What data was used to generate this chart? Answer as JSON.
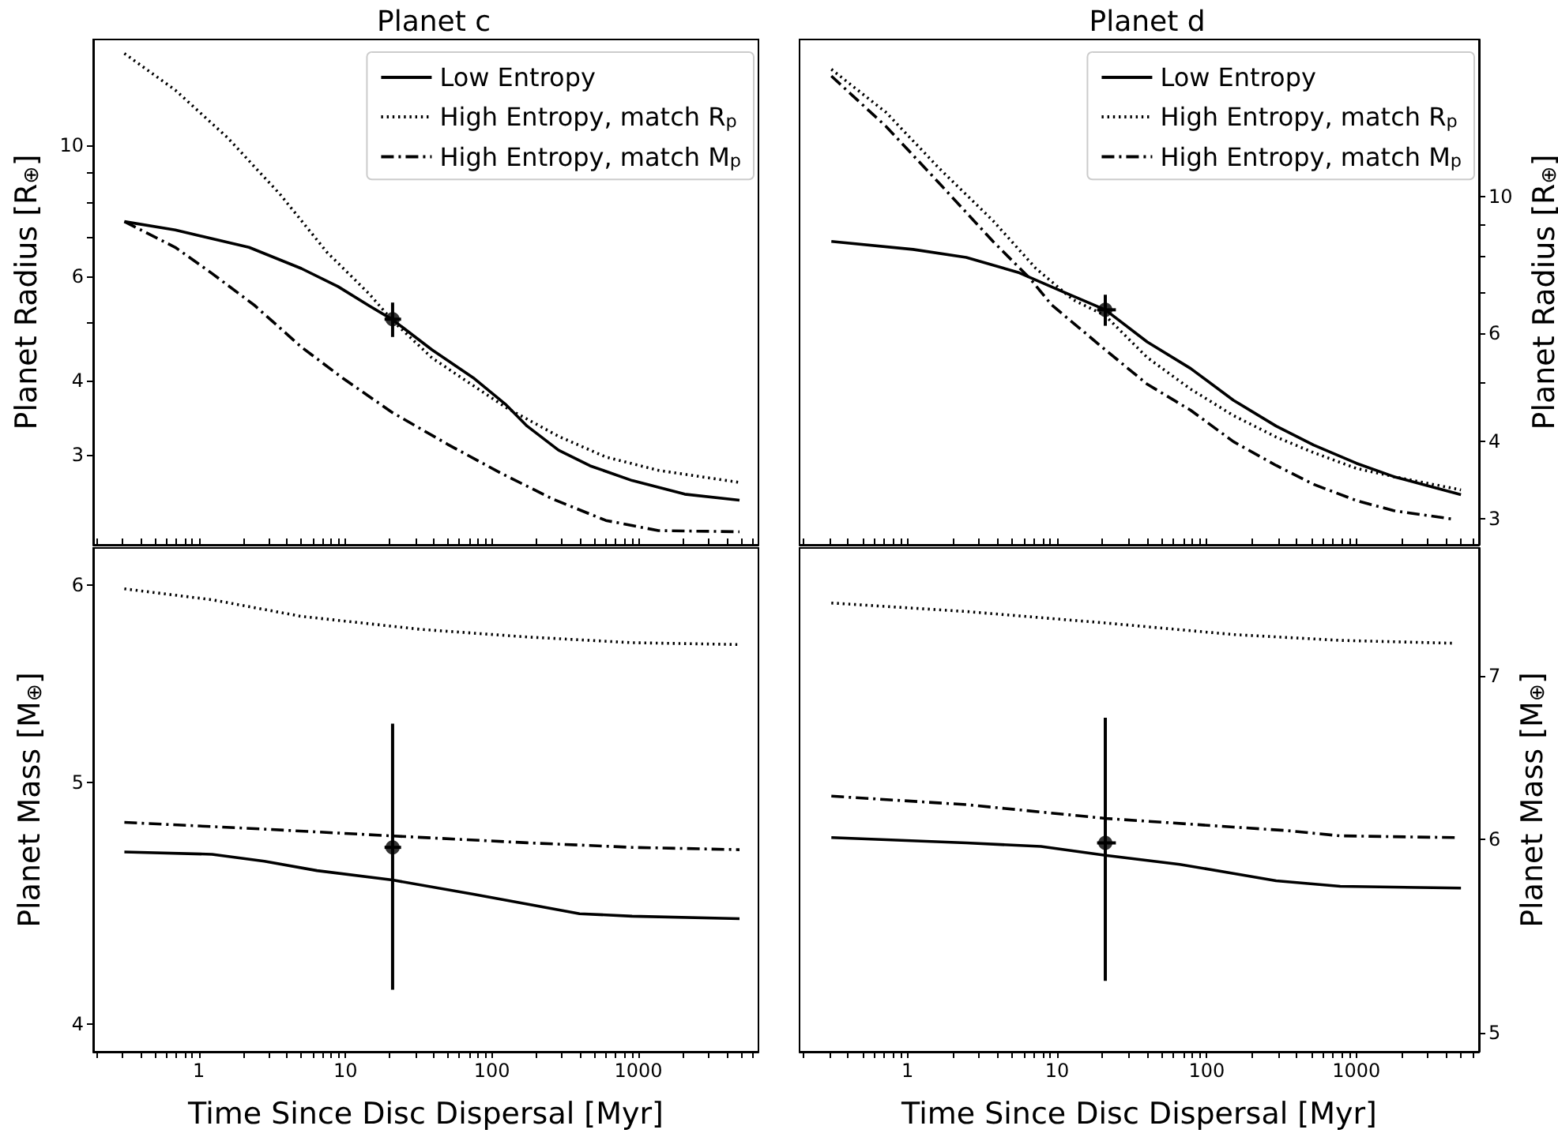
{
  "chart_data": [
    {
      "type": "line",
      "title": "Planet c",
      "ylabel": "Planet Radius [R$_{⊕}$]",
      "log": "xy",
      "grid": false,
      "legend": "top right",
      "tick_labels": "y",
      "xlim": [
        0.19,
        6600
      ],
      "xticks": [
        {
          "value": 0.2,
          "label": null
        },
        {
          "value": 0.3,
          "label": null
        },
        {
          "value": 0.4,
          "label": null
        },
        {
          "value": 0.5,
          "label": null
        },
        {
          "value": 0.6,
          "label": null
        },
        {
          "value": 0.7,
          "label": null
        },
        {
          "value": 0.8,
          "label": null
        },
        {
          "value": 0.9,
          "label": null
        },
        1,
        {
          "value": 2,
          "label": null
        },
        {
          "value": 3,
          "label": null
        },
        {
          "value": 4,
          "label": null
        },
        {
          "value": 5,
          "label": null
        },
        {
          "value": 6,
          "label": null
        },
        {
          "value": 7,
          "label": null
        },
        {
          "value": 8,
          "label": null
        },
        {
          "value": 9,
          "label": null
        },
        10,
        {
          "value": 20,
          "label": null
        },
        {
          "value": 30,
          "label": null
        },
        {
          "value": 40,
          "label": null
        },
        {
          "value": 50,
          "label": null
        },
        {
          "value": 60,
          "label": null
        },
        {
          "value": 70,
          "label": null
        },
        {
          "value": 80,
          "label": null
        },
        {
          "value": 90,
          "label": null
        },
        100,
        {
          "value": 200,
          "label": null
        },
        {
          "value": 300,
          "label": null
        },
        {
          "value": 400,
          "label": null
        },
        {
          "value": 500,
          "label": null
        },
        {
          "value": 600,
          "label": null
        },
        {
          "value": 700,
          "label": null
        },
        {
          "value": 800,
          "label": null
        },
        {
          "value": 900,
          "label": null
        },
        1000,
        {
          "value": 2000,
          "label": null
        },
        {
          "value": 3000,
          "label": null
        },
        {
          "value": 4000,
          "label": null
        },
        {
          "value": 5000,
          "label": null
        },
        {
          "value": 6000,
          "label": null
        }
      ],
      "ylim": [
        2.11,
        15.1
      ],
      "yticks": [
        3,
        4,
        {
          "value": 5,
          "label": null
        },
        6,
        {
          "value": 7,
          "label": null
        },
        {
          "value": 8,
          "label": null
        },
        {
          "value": 9,
          "label": null
        },
        10
      ],
      "series": [
        {
          "name": "Low Entropy",
          "line_style": "solid",
          "color": "#000000",
          "x": [
            0.31,
            0.69,
            2.2,
            5,
            8.9,
            14.6,
            21,
            39,
            76,
            125,
            174,
            285,
            468,
            906,
            2070,
            4900
          ],
          "values": [
            7.43,
            7.19,
            6.72,
            6.19,
            5.77,
            5.35,
            5.07,
            4.51,
            4.03,
            3.64,
            3.35,
            3.05,
            2.87,
            2.71,
            2.57,
            2.51
          ]
        },
        {
          "name": "High Entropy, match R$_{p}$",
          "line_style": "dotted",
          "color": "#000000",
          "x": [
            0.31,
            0.69,
            1.57,
            3.6,
            7.5,
            14.6,
            21,
            39,
            76,
            125,
            285,
            600,
            1370,
            4900
          ],
          "values": [
            14.3,
            12.4,
            10.3,
            8.25,
            6.59,
            5.6,
            5.05,
            4.37,
            3.91,
            3.6,
            3.22,
            2.97,
            2.82,
            2.69
          ]
        },
        {
          "name": "High Entropy, match M$_{p}$",
          "line_style": "dashdot",
          "color": "#000000",
          "x": [
            0.31,
            0.69,
            1.23,
            2.38,
            5,
            9.7,
            21,
            50,
            115,
            262,
            600,
            1370,
            4900
          ],
          "values": [
            7.43,
            6.72,
            6.07,
            5.37,
            4.56,
            4.03,
            3.53,
            3.12,
            2.79,
            2.52,
            2.32,
            2.23,
            2.22
          ]
        },
        {
          "type": "scatter",
          "marker": "circle",
          "color": "#000000",
          "x": [
            21
          ],
          "values": [
            5.08
          ],
          "errors": [
            [
              4.74,
              5.42
            ]
          ],
          "xerrors": [
            [
              18.5,
              24
            ]
          ]
        }
      ]
    },
    {
      "type": "line",
      "title": "Planet d",
      "ylabel": "Planet Radius [R$_{⊕}$]",
      "log": "xy",
      "grid": false,
      "legend": "top right",
      "tick_labels": "y",
      "xlim": [
        0.19,
        6600
      ],
      "xticks": [
        {
          "value": 0.2,
          "label": null
        },
        {
          "value": 0.3,
          "label": null
        },
        {
          "value": 0.4,
          "label": null
        },
        {
          "value": 0.5,
          "label": null
        },
        {
          "value": 0.6,
          "label": null
        },
        {
          "value": 0.7,
          "label": null
        },
        {
          "value": 0.8,
          "label": null
        },
        {
          "value": 0.9,
          "label": null
        },
        1,
        {
          "value": 2,
          "label": null
        },
        {
          "value": 3,
          "label": null
        },
        {
          "value": 4,
          "label": null
        },
        {
          "value": 5,
          "label": null
        },
        {
          "value": 6,
          "label": null
        },
        {
          "value": 7,
          "label": null
        },
        {
          "value": 8,
          "label": null
        },
        {
          "value": 9,
          "label": null
        },
        10,
        {
          "value": 20,
          "label": null
        },
        {
          "value": 30,
          "label": null
        },
        {
          "value": 40,
          "label": null
        },
        {
          "value": 50,
          "label": null
        },
        {
          "value": 60,
          "label": null
        },
        {
          "value": 70,
          "label": null
        },
        {
          "value": 80,
          "label": null
        },
        {
          "value": 90,
          "label": null
        },
        100,
        {
          "value": 200,
          "label": null
        },
        {
          "value": 300,
          "label": null
        },
        {
          "value": 400,
          "label": null
        },
        {
          "value": 500,
          "label": null
        },
        {
          "value": 600,
          "label": null
        },
        {
          "value": 700,
          "label": null
        },
        {
          "value": 800,
          "label": null
        },
        {
          "value": 900,
          "label": null
        },
        1000,
        {
          "value": 2000,
          "label": null
        },
        {
          "value": 3000,
          "label": null
        },
        {
          "value": 4000,
          "label": null
        },
        {
          "value": 5000,
          "label": null
        },
        {
          "value": 6000,
          "label": null
        }
      ],
      "ylim": [
        2.72,
        18
      ],
      "yticks": [
        3,
        4,
        {
          "value": 5,
          "label": null
        },
        6,
        {
          "value": 7,
          "label": null
        },
        {
          "value": 8,
          "label": null
        },
        {
          "value": 9,
          "label": null
        },
        10
      ],
      "series": [
        {
          "name": "Low Entropy",
          "line_style": "solid",
          "color": "#000000",
          "x": [
            0.31,
            1.09,
            2.47,
            5.6,
            10.9,
            21,
            40,
            78,
            151,
            291,
            518,
            1000,
            1780,
            5000
          ],
          "values": [
            8.46,
            8.21,
            7.97,
            7.52,
            7.01,
            6.55,
            5.81,
            5.26,
            4.67,
            4.24,
            3.95,
            3.69,
            3.51,
            3.28
          ]
        },
        {
          "name": "High Entropy, match R$_{p}$",
          "line_style": "dotted",
          "color": "#000000",
          "x": [
            0.31,
            0.72,
            1.64,
            3.73,
            7.2,
            12.8,
            21,
            40,
            78,
            151,
            291,
            518,
            1000,
            1780,
            5000
          ],
          "values": [
            16.1,
            13.7,
            11.1,
            9.14,
            7.65,
            6.8,
            6.41,
            5.48,
            4.87,
            4.41,
            4.07,
            3.84,
            3.62,
            3.51,
            3.34
          ]
        },
        {
          "name": "High Entropy, match M$_{p}$",
          "line_style": "dashdot",
          "color": "#000000",
          "x": [
            0.31,
            0.72,
            1.64,
            3.73,
            6.6,
            9.2,
            21,
            40,
            78,
            151,
            291,
            518,
            1000,
            1780,
            4600
          ],
          "values": [
            15.7,
            13.0,
            10.5,
            8.46,
            7.36,
            6.67,
            5.64,
            4.96,
            4.5,
            4.0,
            3.66,
            3.41,
            3.21,
            3.09,
            2.99
          ]
        },
        {
          "type": "scatter",
          "marker": "circle",
          "color": "#000000",
          "x": [
            21
          ],
          "values": [
            6.55
          ],
          "errors": [
            [
              6.17,
              6.93
            ]
          ],
          "xerrors": [
            [
              18.5,
              24.7
            ]
          ]
        }
      ]
    },
    {
      "type": "line",
      "xlabel": "Time Since Disc Dispersal [Myr]",
      "ylabel": "Planet Mass [M$_{⊕}$]",
      "log": "xy",
      "grid": false,
      "xlim": [
        0.19,
        6600
      ],
      "xticks": [
        {
          "value": 0.2,
          "label": null
        },
        {
          "value": 0.3,
          "label": null
        },
        {
          "value": 0.4,
          "label": null
        },
        {
          "value": 0.5,
          "label": null
        },
        {
          "value": 0.6,
          "label": null
        },
        {
          "value": 0.7,
          "label": null
        },
        {
          "value": 0.8,
          "label": null
        },
        {
          "value": 0.9,
          "label": null
        },
        1,
        {
          "value": 2,
          "label": null
        },
        {
          "value": 3,
          "label": null
        },
        {
          "value": 4,
          "label": null
        },
        {
          "value": 5,
          "label": null
        },
        {
          "value": 6,
          "label": null
        },
        {
          "value": 7,
          "label": null
        },
        {
          "value": 8,
          "label": null
        },
        {
          "value": 9,
          "label": null
        },
        10,
        {
          "value": 20,
          "label": null
        },
        {
          "value": 30,
          "label": null
        },
        {
          "value": 40,
          "label": null
        },
        {
          "value": 50,
          "label": null
        },
        {
          "value": 60,
          "label": null
        },
        {
          "value": 70,
          "label": null
        },
        {
          "value": 80,
          "label": null
        },
        {
          "value": 90,
          "label": null
        },
        100,
        {
          "value": 200,
          "label": null
        },
        {
          "value": 300,
          "label": null
        },
        {
          "value": 400,
          "label": null
        },
        {
          "value": 500,
          "label": null
        },
        {
          "value": 600,
          "label": null
        },
        {
          "value": 700,
          "label": null
        },
        {
          "value": 800,
          "label": null
        },
        {
          "value": 900,
          "label": null
        },
        1000,
        {
          "value": 2000,
          "label": null
        },
        {
          "value": 3000,
          "label": null
        },
        {
          "value": 4000,
          "label": null
        },
        {
          "value": 5000,
          "label": null
        },
        {
          "value": 6000,
          "label": null
        }
      ],
      "ylim": [
        3.9,
        6.21
      ],
      "yticks": [
        4,
        5,
        6
      ],
      "series": [
        {
          "line_style": "solid",
          "color": "#000000",
          "x": [
            0.31,
            1.23,
            2.8,
            6.4,
            21,
            76,
            174,
            397,
            906,
            4900
          ],
          "values": [
            4.69,
            4.68,
            4.65,
            4.61,
            4.57,
            4.51,
            4.47,
            4.43,
            4.42,
            4.41
          ]
        },
        {
          "line_style": "dotted",
          "color": "#000000",
          "x": [
            0.31,
            1.23,
            5,
            33,
            174,
            906,
            4900
          ],
          "values": [
            5.98,
            5.92,
            5.83,
            5.76,
            5.72,
            5.69,
            5.68
          ]
        },
        {
          "line_style": "dashdot",
          "color": "#000000",
          "x": [
            0.31,
            2.8,
            21,
            174,
            906,
            4900
          ],
          "values": [
            4.82,
            4.79,
            4.76,
            4.73,
            4.71,
            4.7
          ]
        },
        {
          "type": "scatter",
          "marker": "circle",
          "color": "#000000",
          "x": [
            21
          ],
          "values": [
            4.71
          ],
          "errors": [
            [
              4.13,
              5.28
            ]
          ],
          "xerrors": [
            [
              18.5,
              24
            ]
          ]
        }
      ]
    },
    {
      "type": "line",
      "xlabel": "Time Since Disc Dispersal [Myr]",
      "ylabel": "Planet Mass [M$_{⊕}$]",
      "log": "xy",
      "grid": false,
      "xlim": [
        0.19,
        6600
      ],
      "xticks": [
        {
          "value": 0.2,
          "label": null
        },
        {
          "value": 0.3,
          "label": null
        },
        {
          "value": 0.4,
          "label": null
        },
        {
          "value": 0.5,
          "label": null
        },
        {
          "value": 0.6,
          "label": null
        },
        {
          "value": 0.7,
          "label": null
        },
        {
          "value": 0.8,
          "label": null
        },
        {
          "value": 0.9,
          "label": null
        },
        1,
        {
          "value": 2,
          "label": null
        },
        {
          "value": 3,
          "label": null
        },
        {
          "value": 4,
          "label": null
        },
        {
          "value": 5,
          "label": null
        },
        {
          "value": 6,
          "label": null
        },
        {
          "value": 7,
          "label": null
        },
        {
          "value": 8,
          "label": null
        },
        {
          "value": 9,
          "label": null
        },
        10,
        {
          "value": 20,
          "label": null
        },
        {
          "value": 30,
          "label": null
        },
        {
          "value": 40,
          "label": null
        },
        {
          "value": 50,
          "label": null
        },
        {
          "value": 60,
          "label": null
        },
        {
          "value": 70,
          "label": null
        },
        {
          "value": 80,
          "label": null
        },
        {
          "value": 90,
          "label": null
        },
        100,
        {
          "value": 200,
          "label": null
        },
        {
          "value": 300,
          "label": null
        },
        {
          "value": 400,
          "label": null
        },
        {
          "value": 500,
          "label": null
        },
        {
          "value": 600,
          "label": null
        },
        {
          "value": 700,
          "label": null
        },
        {
          "value": 800,
          "label": null
        },
        {
          "value": 900,
          "label": null
        },
        1000,
        {
          "value": 2000,
          "label": null
        },
        {
          "value": 3000,
          "label": null
        },
        {
          "value": 4000,
          "label": null
        },
        {
          "value": 5000,
          "label": null
        },
        {
          "value": 6000,
          "label": null
        }
      ],
      "ylim": [
        4.91,
        7.9
      ],
      "yticks": [
        5,
        6,
        7
      ],
      "series": [
        {
          "line_style": "solid",
          "color": "#000000",
          "x": [
            0.31,
            2.47,
            7.8,
            21,
            66,
            151,
            291,
            780,
            5000
          ],
          "values": [
            6.01,
            5.98,
            5.96,
            5.91,
            5.86,
            5.81,
            5.77,
            5.74,
            5.73
          ]
        },
        {
          "line_style": "dotted",
          "color": "#000000",
          "x": [
            0.31,
            2.47,
            21,
            151,
            780,
            4600
          ],
          "values": [
            7.5,
            7.44,
            7.36,
            7.28,
            7.24,
            7.22
          ]
        },
        {
          "line_style": "dashdot",
          "color": "#000000",
          "x": [
            0.31,
            2.47,
            21,
            151,
            343,
            780,
            4600
          ],
          "values": [
            6.25,
            6.2,
            6.12,
            6.07,
            6.05,
            6.02,
            6.01
          ]
        },
        {
          "type": "scatter",
          "marker": "circle",
          "color": "#000000",
          "x": [
            21
          ],
          "values": [
            5.98
          ],
          "errors": [
            [
              5.25,
              6.73
            ]
          ],
          "xerrors": [
            [
              18.5,
              24.7
            ]
          ]
        }
      ]
    }
  ]
}
